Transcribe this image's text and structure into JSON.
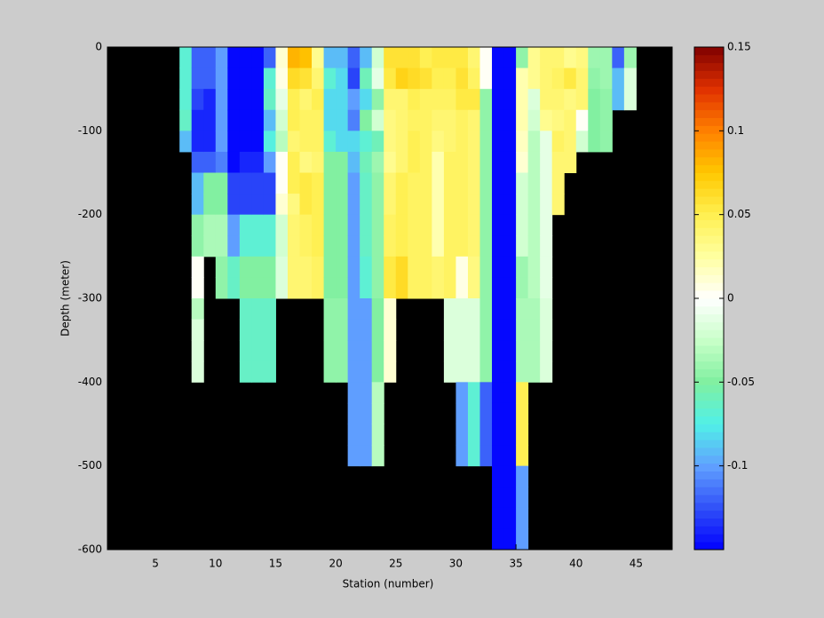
{
  "chart_data": {
    "type": "heatmap",
    "xlabel": "Station (number)",
    "ylabel": "Depth (meter)",
    "xlim": [
      1,
      48
    ],
    "ylim": [
      -600,
      0
    ],
    "xticks": [
      5,
      10,
      15,
      20,
      25,
      30,
      35,
      40,
      45
    ],
    "yticks": [
      -600,
      -500,
      -400,
      -300,
      -200,
      -100,
      0
    ],
    "x_edges": [
      1,
      2,
      3,
      4,
      5,
      6,
      7,
      8,
      9,
      10,
      11,
      12,
      13,
      14,
      15,
      16,
      17,
      18,
      19,
      20,
      21,
      22,
      23,
      24,
      25,
      26,
      27,
      28,
      29,
      30,
      31,
      32,
      33,
      34,
      35,
      36,
      37,
      38,
      39,
      40,
      41,
      42,
      43,
      44,
      45,
      46,
      47,
      48
    ],
    "y_edges": [
      0,
      -25,
      -50,
      -75,
      -100,
      -125,
      -150,
      -175,
      -200,
      -225,
      -250,
      -275,
      -300,
      -325,
      -350,
      -375,
      -400,
      -425,
      -450,
      -475,
      -500,
      -525,
      -550,
      -575,
      -600
    ],
    "clim": [
      -0.15,
      0.15
    ],
    "cticks": [
      -0.1,
      -0.05,
      0,
      0.05,
      0.1,
      0.15
    ],
    "levels": 64,
    "colormap": [
      "#0000ff",
      "#3050f8",
      "#60a0ff",
      "#50f0e8",
      "#80f0a0",
      "#c8ffc8",
      "#ffffff",
      "#ffffa0",
      "#fff050",
      "#ffc800",
      "#ff8000",
      "#e03000",
      "#800000"
    ],
    "nan_color": "#000000",
    "z": [
      [
        null,
        null,
        null,
        null,
        null,
        null,
        null,
        null,
        null,
        null,
        null,
        null,
        null,
        null,
        null,
        null,
        null,
        null,
        null,
        null,
        null,
        null,
        null,
        null
      ],
      [
        null,
        null,
        null,
        null,
        null,
        null,
        null,
        null,
        null,
        null,
        null,
        null,
        null,
        null,
        null,
        null,
        null,
        null,
        null,
        null,
        null,
        null,
        null,
        null
      ],
      [
        null,
        null,
        null,
        null,
        null,
        null,
        null,
        null,
        null,
        null,
        null,
        null,
        null,
        null,
        null,
        null,
        null,
        null,
        null,
        null,
        null,
        null,
        null,
        null
      ],
      [
        null,
        null,
        null,
        null,
        null,
        null,
        null,
        null,
        null,
        null,
        null,
        null,
        null,
        null,
        null,
        null,
        null,
        null,
        null,
        null,
        null,
        null,
        null,
        null
      ],
      [
        null,
        null,
        null,
        null,
        null,
        null,
        null,
        null,
        null,
        null,
        null,
        null,
        null,
        null,
        null,
        null,
        null,
        null,
        null,
        null,
        null,
        null,
        null,
        null
      ],
      [
        null,
        null,
        null,
        null,
        null,
        null,
        null,
        null,
        null,
        null,
        null,
        null,
        null,
        null,
        null,
        null,
        null,
        null,
        null,
        null,
        null,
        null,
        null,
        null
      ],
      [
        -0.07,
        -0.07,
        -0.07,
        -0.065,
        -0.09,
        null,
        null,
        null,
        null,
        null,
        null,
        null,
        null,
        null,
        null,
        null,
        null,
        null,
        null,
        null,
        null,
        null,
        null,
        null
      ],
      [
        -0.12,
        -0.12,
        -0.13,
        -0.14,
        -0.14,
        -0.12,
        -0.09,
        -0.09,
        -0.045,
        -0.045,
        0,
        0,
        -0.03,
        -0.015,
        -0.015,
        -0.015,
        null,
        null,
        null,
        null,
        null,
        null,
        null,
        null
      ],
      [
        -0.12,
        -0.12,
        -0.14,
        -0.14,
        -0.14,
        -0.12,
        -0.05,
        -0.05,
        -0.035,
        -0.035,
        null,
        null,
        null,
        null,
        null,
        null,
        null,
        null,
        null,
        null,
        null,
        null,
        null,
        null
      ],
      [
        -0.1,
        -0.1,
        -0.1,
        -0.1,
        -0.1,
        -0.11,
        -0.05,
        -0.05,
        -0.035,
        -0.035,
        -0.045,
        -0.045,
        null,
        null,
        null,
        null,
        null,
        null,
        null,
        null,
        null,
        null,
        null,
        null
      ],
      [
        -0.15,
        -0.15,
        -0.15,
        -0.15,
        -0.15,
        -0.15,
        -0.13,
        -0.13,
        -0.1,
        -0.1,
        -0.065,
        -0.065,
        null,
        null,
        null,
        null,
        null,
        null,
        null,
        null,
        null,
        null,
        null,
        null
      ],
      [
        -0.15,
        -0.15,
        -0.15,
        -0.15,
        -0.15,
        -0.14,
        -0.13,
        -0.13,
        -0.07,
        -0.07,
        -0.05,
        -0.05,
        -0.065,
        -0.065,
        -0.065,
        -0.065,
        null,
        null,
        null,
        null,
        null,
        null,
        null,
        null
      ],
      [
        -0.15,
        -0.15,
        -0.15,
        -0.15,
        -0.15,
        -0.14,
        -0.13,
        -0.13,
        -0.07,
        -0.07,
        -0.05,
        -0.05,
        -0.065,
        -0.065,
        -0.065,
        -0.065,
        null,
        null,
        null,
        null,
        null,
        null,
        null,
        null
      ],
      [
        -0.12,
        -0.07,
        -0.065,
        -0.09,
        -0.075,
        -0.1,
        -0.13,
        -0.13,
        -0.07,
        -0.07,
        -0.05,
        -0.05,
        -0.065,
        -0.065,
        -0.065,
        -0.065,
        null,
        null,
        null,
        null,
        null,
        null,
        null,
        null
      ],
      [
        0.01,
        0.005,
        -0.01,
        -0.02,
        -0.03,
        0,
        0,
        0.01,
        -0.02,
        -0.02,
        -0.015,
        -0.015,
        null,
        null,
        null,
        null,
        null,
        null,
        null,
        null,
        null,
        null,
        null,
        null
      ],
      [
        0.08,
        0.065,
        0.05,
        0.05,
        0.04,
        0.05,
        0.05,
        0.035,
        0.04,
        0.04,
        0.04,
        0.04,
        null,
        null,
        null,
        null,
        null,
        null,
        null,
        null,
        null,
        null,
        null,
        null
      ],
      [
        0.075,
        0.06,
        0.04,
        0.045,
        0.045,
        0.035,
        0.055,
        0.055,
        0.045,
        0.045,
        0.04,
        0.04,
        null,
        null,
        null,
        null,
        null,
        null,
        null,
        null,
        null,
        null,
        null,
        null
      ],
      [
        0.03,
        0.04,
        0.05,
        0.045,
        0.045,
        0.04,
        0.05,
        0.05,
        0.05,
        0.05,
        0.045,
        0.045,
        null,
        null,
        null,
        null,
        null,
        null,
        null,
        null,
        null,
        null,
        null,
        null
      ],
      [
        -0.09,
        -0.07,
        -0.08,
        -0.08,
        -0.07,
        -0.05,
        -0.05,
        -0.05,
        -0.05,
        -0.05,
        -0.05,
        -0.05,
        -0.045,
        -0.045,
        -0.045,
        -0.045,
        null,
        null,
        null,
        null,
        null,
        null,
        null,
        null
      ],
      [
        -0.09,
        -0.08,
        -0.08,
        -0.08,
        -0.08,
        -0.05,
        -0.05,
        -0.05,
        -0.05,
        -0.05,
        -0.05,
        -0.05,
        -0.045,
        -0.045,
        -0.045,
        -0.045,
        null,
        null,
        null,
        null,
        null,
        null,
        null,
        null
      ],
      [
        -0.12,
        -0.13,
        -0.1,
        -0.11,
        -0.08,
        -0.09,
        -0.1,
        -0.1,
        -0.1,
        -0.1,
        -0.1,
        -0.1,
        -0.1,
        -0.1,
        -0.1,
        -0.1,
        -0.1,
        -0.1,
        -0.1,
        -0.1,
        null,
        null,
        null,
        null
      ],
      [
        -0.09,
        -0.06,
        -0.08,
        -0.05,
        -0.07,
        -0.06,
        -0.065,
        -0.065,
        -0.065,
        -0.065,
        -0.07,
        -0.07,
        -0.1,
        -0.1,
        -0.1,
        -0.1,
        -0.1,
        -0.1,
        -0.1,
        -0.1,
        null,
        null,
        null,
        null
      ],
      [
        -0.02,
        -0.01,
        -0.045,
        -0.02,
        -0.06,
        -0.04,
        -0.045,
        -0.045,
        -0.045,
        -0.045,
        -0.045,
        -0.045,
        -0.05,
        -0.05,
        -0.05,
        -0.05,
        -0.03,
        -0.03,
        -0.03,
        -0.03,
        null,
        null,
        null,
        null
      ],
      [
        0.06,
        0.055,
        0.04,
        0.035,
        0.035,
        0.03,
        0.04,
        0.04,
        0.045,
        0.045,
        0.055,
        0.055,
        0.01,
        0.01,
        0.01,
        0.01,
        null,
        null,
        null,
        null,
        null,
        null,
        null,
        null
      ],
      [
        0.06,
        0.07,
        0.04,
        0.04,
        0.04,
        0.04,
        0.05,
        0.05,
        0.05,
        0.05,
        0.065,
        0.065,
        null,
        null,
        null,
        null,
        null,
        null,
        null,
        null,
        null,
        null,
        null,
        null
      ],
      [
        0.06,
        0.065,
        0.05,
        0.045,
        0.05,
        0.05,
        0.045,
        0.045,
        0.045,
        0.045,
        0.045,
        0.045,
        null,
        null,
        null,
        null,
        null,
        null,
        null,
        null,
        null,
        null,
        null,
        null
      ],
      [
        0.05,
        0.06,
        0.045,
        0.045,
        0.045,
        0.045,
        0.045,
        0.045,
        0.045,
        0.045,
        0.045,
        0.045,
        null,
        null,
        null,
        null,
        null,
        null,
        null,
        null,
        null,
        null,
        null,
        null
      ],
      [
        0.055,
        0.05,
        0.045,
        0.04,
        0.035,
        0.02,
        0.02,
        0.02,
        0.02,
        0.02,
        0.04,
        0.04,
        null,
        null,
        null,
        null,
        null,
        null,
        null,
        null,
        null,
        null,
        null,
        null
      ],
      [
        0.055,
        0.05,
        0.045,
        0.04,
        0.04,
        0.045,
        0.045,
        0.045,
        0.045,
        0.045,
        0.045,
        0.045,
        -0.015,
        -0.015,
        -0.015,
        -0.015,
        null,
        null,
        null,
        null,
        null,
        null,
        null,
        null
      ],
      [
        0.055,
        0.06,
        0.055,
        0.045,
        0.045,
        0.045,
        0.045,
        0.045,
        0.045,
        0.045,
        0.005,
        0.005,
        -0.015,
        -0.015,
        -0.015,
        -0.015,
        -0.1,
        -0.1,
        -0.1,
        -0.1,
        null,
        null,
        null,
        null
      ],
      [
        0.04,
        0.045,
        0.055,
        0.04,
        0.04,
        0.04,
        0.04,
        0.04,
        0.04,
        0.04,
        0.035,
        0.035,
        -0.015,
        -0.015,
        -0.015,
        -0.015,
        -0.07,
        -0.07,
        -0.07,
        -0.07,
        null,
        null,
        null,
        null
      ],
      [
        0,
        0,
        -0.045,
        -0.045,
        -0.045,
        -0.045,
        -0.045,
        -0.045,
        -0.045,
        -0.045,
        -0.045,
        -0.045,
        -0.045,
        -0.045,
        -0.045,
        -0.045,
        -0.12,
        -0.12,
        -0.12,
        -0.12,
        null,
        null,
        null,
        null
      ],
      [
        -0.15,
        -0.15,
        -0.15,
        -0.15,
        -0.15,
        -0.15,
        -0.15,
        -0.15,
        -0.15,
        -0.15,
        -0.15,
        -0.15,
        -0.15,
        -0.15,
        -0.15,
        -0.15,
        -0.15,
        -0.15,
        -0.15,
        -0.15,
        -0.15,
        -0.15,
        -0.15,
        -0.15
      ],
      [
        -0.15,
        -0.15,
        -0.15,
        -0.15,
        -0.15,
        -0.15,
        -0.15,
        -0.15,
        -0.15,
        -0.15,
        -0.15,
        -0.15,
        -0.15,
        -0.15,
        -0.15,
        -0.15,
        -0.15,
        -0.15,
        -0.15,
        -0.15,
        -0.15,
        -0.15,
        -0.15,
        -0.15
      ],
      [
        -0.045,
        0.02,
        0.02,
        0.02,
        0.015,
        0.01,
        -0.02,
        -0.02,
        -0.02,
        -0.02,
        -0.04,
        -0.04,
        -0.035,
        -0.035,
        -0.035,
        -0.035,
        0.05,
        0.05,
        0.05,
        0.05,
        -0.1,
        -0.1,
        -0.1,
        -0.1
      ],
      [
        0.03,
        0.03,
        -0.015,
        -0.02,
        -0.03,
        -0.03,
        -0.03,
        -0.03,
        -0.03,
        -0.03,
        -0.03,
        -0.03,
        -0.035,
        -0.035,
        -0.035,
        -0.035,
        null,
        null,
        null,
        null,
        null,
        null,
        null,
        null
      ],
      [
        0.04,
        0.04,
        0.04,
        0.03,
        -0.01,
        -0.01,
        -0.01,
        -0.01,
        -0.01,
        -0.01,
        -0.01,
        -0.01,
        -0.015,
        -0.015,
        -0.015,
        -0.015,
        null,
        null,
        null,
        null,
        null,
        null,
        null,
        null
      ],
      [
        0.04,
        0.045,
        0.04,
        0.035,
        0.045,
        0.04,
        0.04,
        0.04,
        null,
        null,
        null,
        null,
        null,
        null,
        null,
        null,
        null,
        null,
        null,
        null,
        null,
        null,
        null,
        null
      ],
      [
        0.03,
        0.055,
        0.035,
        0.04,
        0.04,
        0.04,
        null,
        null,
        null,
        null,
        null,
        null,
        null,
        null,
        null,
        null,
        null,
        null,
        null,
        null,
        null,
        null,
        null,
        null
      ],
      [
        0.035,
        0.04,
        0.04,
        0,
        -0.02,
        null,
        null,
        null,
        null,
        null,
        null,
        null,
        null,
        null,
        null,
        null,
        null,
        null,
        null,
        null,
        null,
        null,
        null,
        null
      ],
      [
        -0.04,
        -0.045,
        -0.05,
        -0.05,
        -0.05,
        null,
        null,
        null,
        null,
        null,
        null,
        null,
        null,
        null,
        null,
        null,
        null,
        null,
        null,
        null,
        null,
        null,
        null,
        null
      ],
      [
        -0.04,
        -0.04,
        -0.045,
        -0.045,
        -0.045,
        null,
        null,
        null,
        null,
        null,
        null,
        null,
        null,
        null,
        null,
        null,
        null,
        null,
        null,
        null,
        null,
        null,
        null,
        null
      ],
      [
        -0.12,
        -0.09,
        -0.09,
        null,
        null,
        null,
        null,
        null,
        null,
        null,
        null,
        null,
        null,
        null,
        null,
        null,
        null,
        null,
        null,
        null,
        null,
        null,
        null,
        null
      ],
      [
        -0.04,
        -0.015,
        -0.015,
        null,
        null,
        null,
        null,
        null,
        null,
        null,
        null,
        null,
        null,
        null,
        null,
        null,
        null,
        null,
        null,
        null,
        null,
        null,
        null,
        null
      ],
      [
        null,
        null,
        null,
        null,
        null,
        null,
        null,
        null,
        null,
        null,
        null,
        null,
        null,
        null,
        null,
        null,
        null,
        null,
        null,
        null,
        null,
        null,
        null,
        null
      ],
      [
        null,
        null,
        null,
        null,
        null,
        null,
        null,
        null,
        null,
        null,
        null,
        null,
        null,
        null,
        null,
        null,
        null,
        null,
        null,
        null,
        null,
        null,
        null,
        null
      ],
      [
        null,
        null,
        null,
        null,
        null,
        null,
        null,
        null,
        null,
        null,
        null,
        null,
        null,
        null,
        null,
        null,
        null,
        null,
        null,
        null,
        null,
        null,
        null,
        null
      ]
    ]
  }
}
